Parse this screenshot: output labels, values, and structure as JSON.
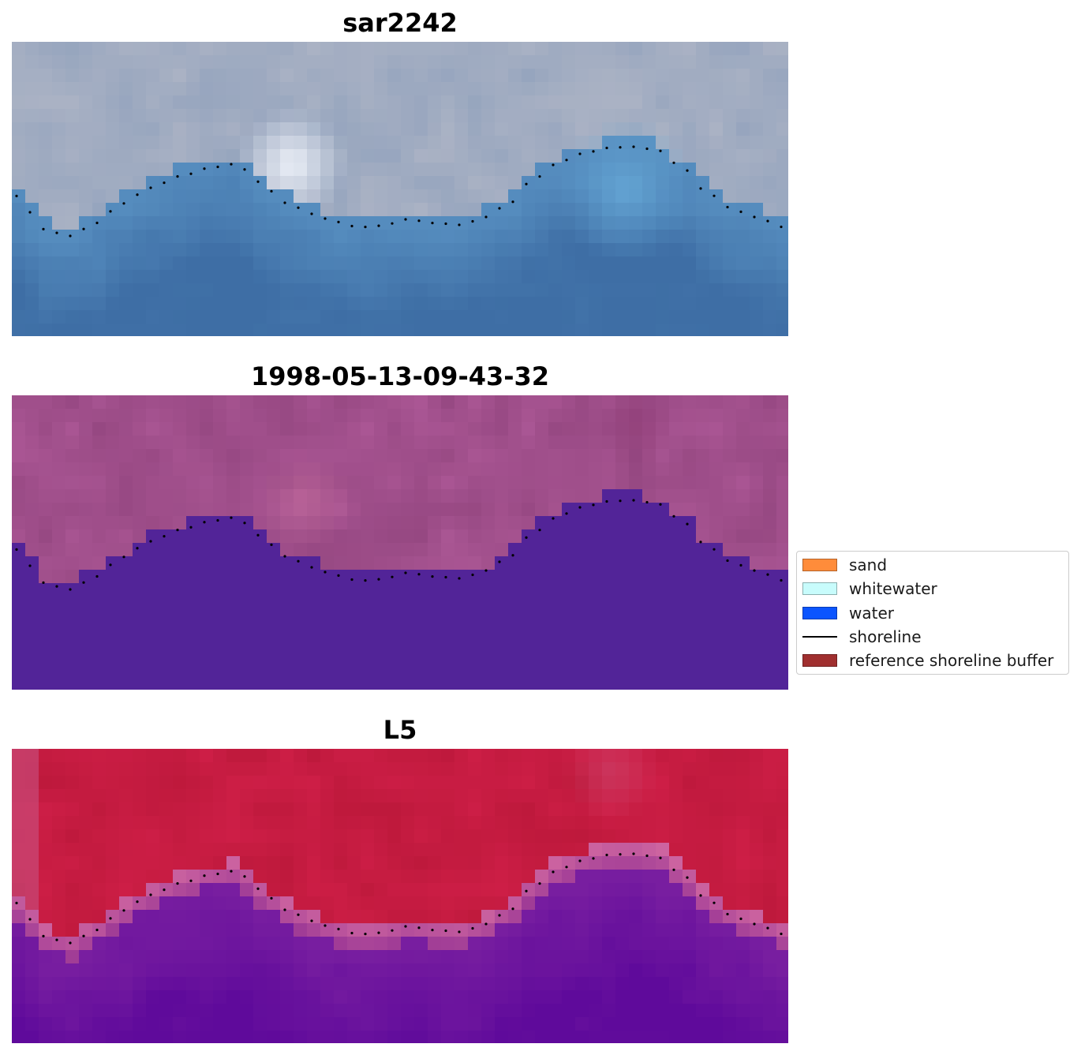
{
  "panels": [
    {
      "title": "sar2242",
      "scheme": "sar"
    },
    {
      "title": "1998-05-13-09-43-32",
      "scheme": "classified"
    },
    {
      "title": "L5",
      "scheme": "ndwi"
    }
  ],
  "legend": {
    "items": [
      {
        "label": "sand",
        "color": "#ff8c3a",
        "kind": "patch"
      },
      {
        "label": "whitewater",
        "color": "#c8fcfc",
        "kind": "patch"
      },
      {
        "label": "water",
        "color": "#0b55ff",
        "kind": "patch"
      },
      {
        "label": "shoreline",
        "color": "#000000",
        "kind": "line"
      },
      {
        "label": "reference shoreline buffer",
        "color": "#a02f2f",
        "kind": "patch"
      }
    ]
  }
}
